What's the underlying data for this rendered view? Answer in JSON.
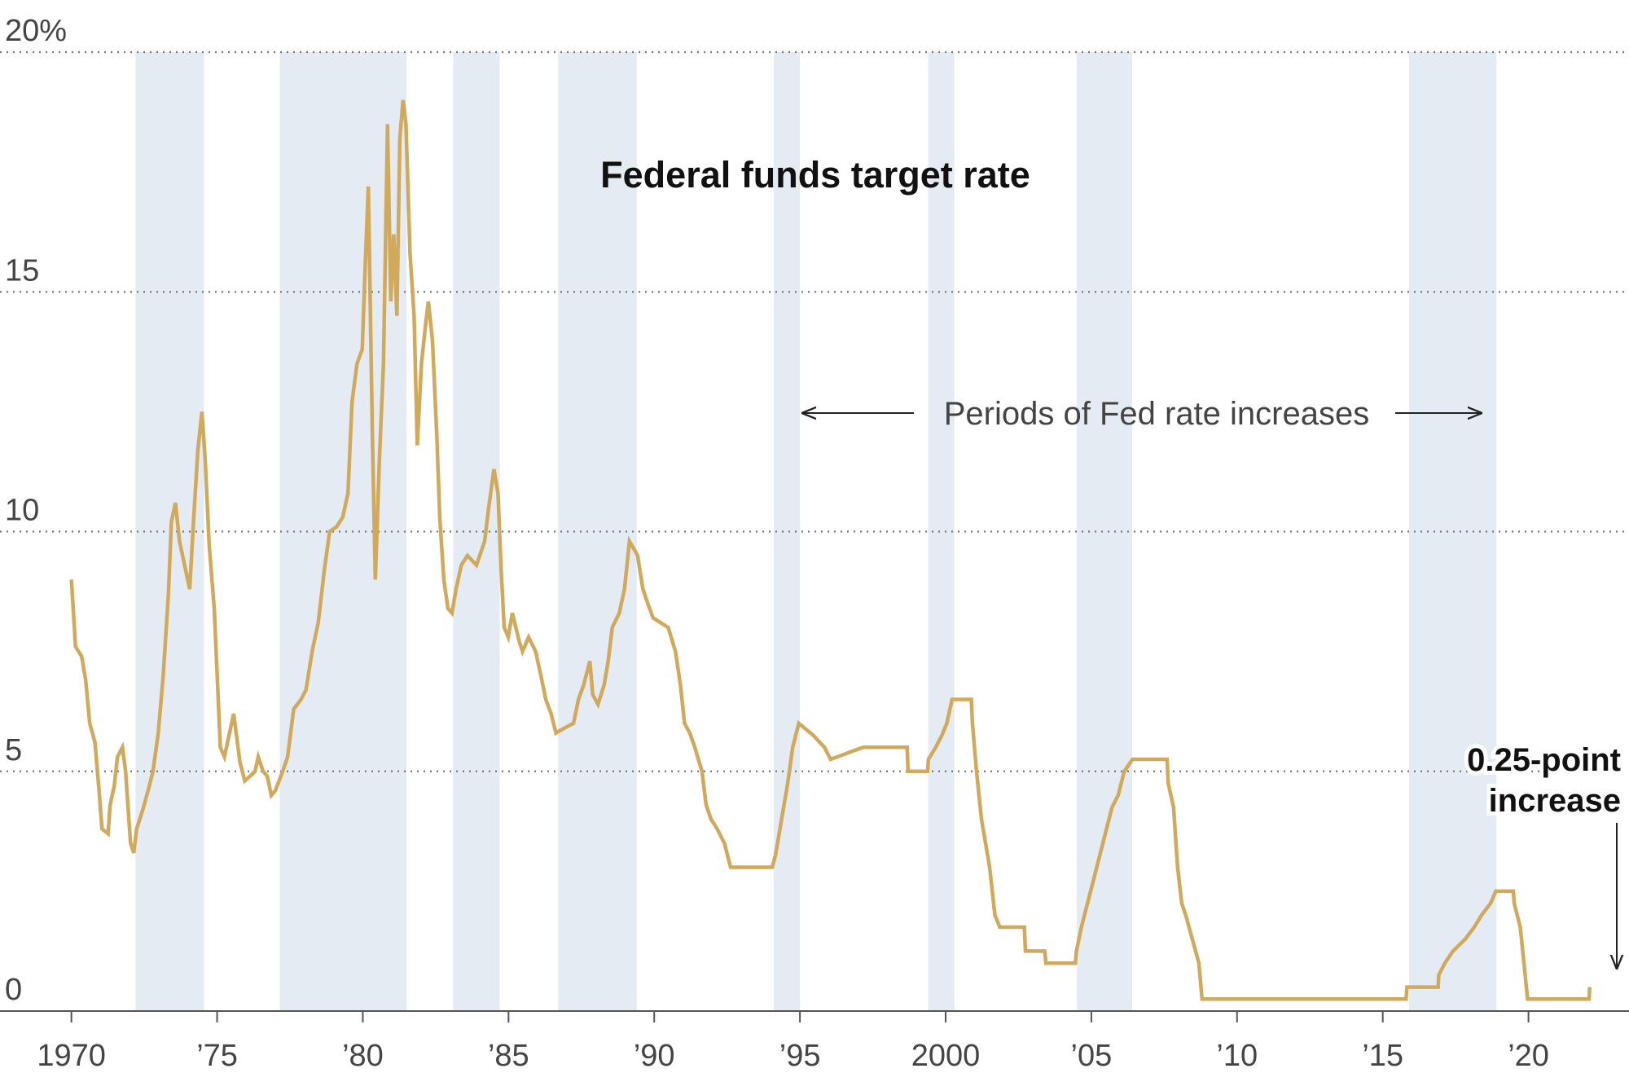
{
  "chart_data": {
    "type": "line",
    "title": "Federal funds target rate",
    "band_label": "Periods of Fed rate increases",
    "annotation": [
      "0.25-point",
      "increase"
    ],
    "bands": [
      [
        1972.2,
        1974.55
      ],
      [
        1977.15,
        1981.5
      ],
      [
        1983.1,
        1984.7
      ],
      [
        1986.7,
        1989.4
      ],
      [
        1994.1,
        1995.0
      ],
      [
        1999.4,
        2000.3
      ],
      [
        2004.5,
        2006.4
      ],
      [
        2015.9,
        2018.9
      ]
    ],
    "band_color": "#e4ebf3",
    "series": [
      {
        "name": "Federal funds target rate",
        "color": "#d1a95c",
        "x": [
          1970.0,
          1970.14,
          1970.35,
          1970.49,
          1970.63,
          1970.81,
          1970.95,
          1971.05,
          1971.26,
          1971.33,
          1971.47,
          1971.58,
          1971.75,
          1971.86,
          1971.96,
          1972.03,
          1972.14,
          1972.24,
          1972.45,
          1972.63,
          1972.8,
          1972.98,
          1973.15,
          1973.33,
          1973.43,
          1973.57,
          1973.71,
          1973.92,
          1974.06,
          1974.2,
          1974.34,
          1974.48,
          1974.59,
          1974.73,
          1974.9,
          1975.01,
          1975.11,
          1975.25,
          1975.39,
          1975.57,
          1975.78,
          1975.95,
          1976.13,
          1976.3,
          1976.41,
          1976.58,
          1976.72,
          1976.86,
          1977.0,
          1977.25,
          1977.42,
          1977.63,
          1977.88,
          1978.05,
          1978.26,
          1978.47,
          1978.68,
          1978.86,
          1979.1,
          1979.31,
          1979.49,
          1979.63,
          1979.8,
          1979.98,
          1980.08,
          1980.19,
          1980.33,
          1980.43,
          1980.57,
          1980.71,
          1980.85,
          1980.96,
          1981.06,
          1981.17,
          1981.27,
          1981.38,
          1981.48,
          1981.62,
          1981.76,
          1981.87,
          1982.01,
          1982.15,
          1982.25,
          1982.39,
          1982.54,
          1982.64,
          1982.78,
          1982.92,
          1983.06,
          1983.2,
          1983.38,
          1983.59,
          1983.9,
          1984.18,
          1984.32,
          1984.5,
          1984.64,
          1984.74,
          1984.85,
          1984.99,
          1985.13,
          1985.37,
          1985.48,
          1985.69,
          1985.93,
          1986.11,
          1986.28,
          1986.46,
          1986.63,
          1986.91,
          1987.23,
          1987.4,
          1987.58,
          1987.79,
          1987.89,
          1988.07,
          1988.28,
          1988.42,
          1988.56,
          1988.8,
          1988.98,
          1989.15,
          1989.43,
          1989.61,
          1989.78,
          1989.96,
          1990.48,
          1990.73,
          1990.9,
          1991.04,
          1991.22,
          1991.39,
          1991.64,
          1991.78,
          1991.95,
          1992.16,
          1992.41,
          1992.62,
          1994.05,
          1994.16,
          1994.3,
          1994.44,
          1994.58,
          1994.75,
          1994.96,
          1995.46,
          1995.84,
          1996.05,
          1997.17,
          1998.68,
          1998.71,
          1999.38,
          1999.41,
          1999.66,
          1999.87,
          2000.04,
          2000.22,
          2000.88,
          2000.92,
          2001.06,
          2001.23,
          2001.37,
          2001.51,
          2001.69,
          2001.86,
          2002.7,
          2002.74,
          2003.4,
          2003.44,
          2004.45,
          2004.49,
          2004.66,
          2004.87,
          2005.08,
          2005.29,
          2005.5,
          2005.71,
          2005.92,
          2006.13,
          2006.41,
          2007.6,
          2007.64,
          2007.82,
          2007.96,
          2008.1,
          2008.24,
          2008.69,
          2008.8,
          2015.8,
          2015.83,
          2016.9,
          2016.92,
          2017.13,
          2017.41,
          2017.83,
          2018.14,
          2018.39,
          2018.7,
          2018.88,
          2019.48,
          2019.51,
          2019.72,
          2019.97,
          2022.08,
          2022.1
        ],
        "values": [
          9.0,
          7.6,
          7.4,
          6.9,
          6.0,
          5.6,
          4.6,
          3.8,
          3.7,
          4.3,
          4.7,
          5.3,
          5.5,
          5.0,
          4.1,
          3.5,
          3.3,
          3.8,
          4.2,
          4.6,
          5.0,
          5.8,
          7.0,
          8.7,
          10.2,
          10.6,
          9.8,
          9.2,
          8.8,
          10.3,
          11.7,
          12.5,
          11.5,
          9.7,
          8.4,
          6.9,
          5.5,
          5.3,
          5.7,
          6.2,
          5.2,
          4.8,
          4.9,
          5.0,
          5.3,
          5.0,
          4.9,
          4.5,
          4.6,
          5.0,
          5.3,
          6.3,
          6.5,
          6.7,
          7.5,
          8.1,
          9.2,
          10.0,
          10.1,
          10.3,
          10.8,
          12.7,
          13.5,
          13.8,
          15.5,
          17.2,
          12.0,
          9.0,
          11.5,
          13.5,
          18.5,
          14.8,
          16.2,
          14.5,
          18.2,
          19.0,
          18.5,
          15.8,
          14.5,
          11.8,
          13.5,
          14.3,
          14.8,
          14.0,
          12.0,
          10.3,
          9.0,
          8.4,
          8.3,
          8.8,
          9.3,
          9.5,
          9.3,
          9.8,
          10.5,
          11.3,
          10.8,
          9.3,
          8.0,
          7.8,
          8.3,
          7.7,
          7.5,
          7.8,
          7.5,
          7.0,
          6.5,
          6.2,
          5.8,
          5.9,
          6.0,
          6.5,
          6.8,
          7.3,
          6.6,
          6.4,
          6.8,
          7.3,
          8.0,
          8.3,
          8.8,
          9.8,
          9.5,
          8.8,
          8.5,
          8.2,
          8.0,
          7.5,
          6.8,
          6.0,
          5.8,
          5.5,
          5.0,
          4.3,
          4.0,
          3.8,
          3.5,
          3.0,
          3.0,
          3.25,
          3.75,
          4.25,
          4.75,
          5.5,
          6.0,
          5.75,
          5.5,
          5.25,
          5.5,
          5.5,
          5.0,
          5.0,
          5.25,
          5.5,
          5.75,
          6.0,
          6.5,
          6.5,
          6.0,
          5.0,
          4.0,
          3.5,
          3.0,
          2.0,
          1.75,
          1.75,
          1.25,
          1.25,
          1.0,
          1.0,
          1.25,
          1.75,
          2.25,
          2.75,
          3.25,
          3.75,
          4.25,
          4.5,
          5.0,
          5.25,
          5.25,
          4.75,
          4.25,
          3.0,
          2.25,
          2.0,
          1.0,
          0.25,
          0.25,
          0.5,
          0.5,
          0.75,
          1.0,
          1.25,
          1.5,
          1.75,
          2.0,
          2.25,
          2.5,
          2.5,
          2.25,
          1.75,
          0.25,
          0.25,
          0.5
        ]
      }
    ],
    "xlim": [
      1967.55,
      2023.45
    ],
    "xticks": [
      {
        "value": 1970,
        "label": "1970"
      },
      {
        "value": 1975,
        "label": "’75"
      },
      {
        "value": 1980,
        "label": "’80"
      },
      {
        "value": 1985,
        "label": "’85"
      },
      {
        "value": 1990,
        "label": "’90"
      },
      {
        "value": 1995,
        "label": "’95"
      },
      {
        "value": 2000,
        "label": "2000"
      },
      {
        "value": 2005,
        "label": "’05"
      },
      {
        "value": 2010,
        "label": "’10"
      },
      {
        "value": 2015,
        "label": "’15"
      },
      {
        "value": 2020,
        "label": "’20"
      }
    ],
    "ylim": [
      0,
      20
    ],
    "yticks": [
      0,
      5,
      10,
      15,
      {
        "value": 20,
        "label": "20%"
      }
    ],
    "grid": true
  }
}
